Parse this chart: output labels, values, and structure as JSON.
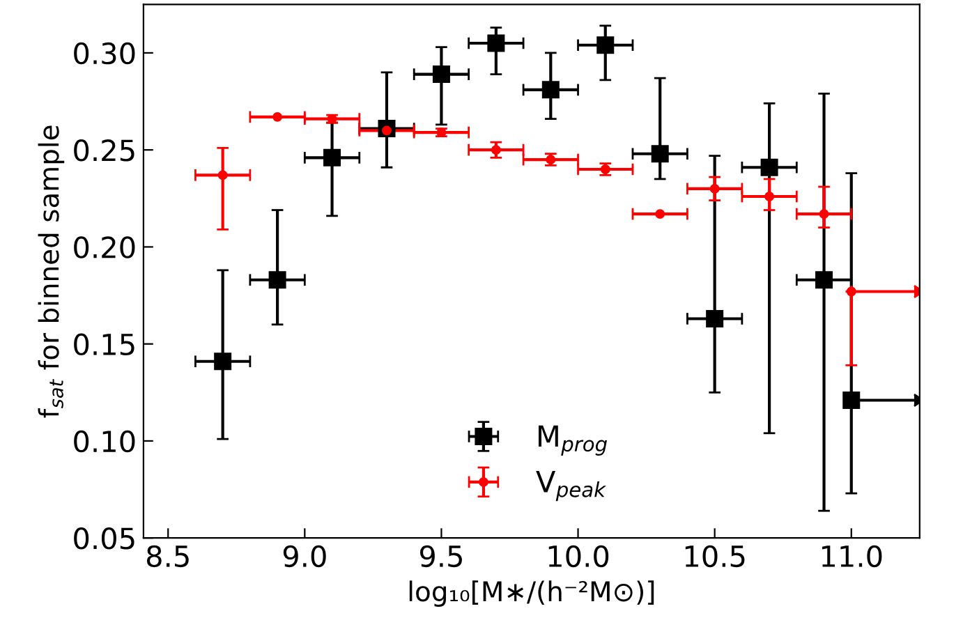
{
  "chart_data": {
    "type": "scatter",
    "xlabel": "log₁₀[M∗/(h⁻²M⊙)]",
    "ylabel": "f$_{sat}$ for binned sample",
    "xlim": [
      8.41,
      11.25
    ],
    "ylim": [
      0.05,
      0.325
    ],
    "xticks": [
      {
        "value": 8.5,
        "label": "8.5"
      },
      {
        "value": 9.0,
        "label": "9.0"
      },
      {
        "value": 9.5,
        "label": "9.5"
      },
      {
        "value": 10.0,
        "label": "10.0"
      },
      {
        "value": 10.5,
        "label": "10.5"
      },
      {
        "value": 11.0,
        "label": "11.0"
      }
    ],
    "yticks": [
      0.05,
      {
        "value": 0.1,
        "label": "0.10"
      },
      0.15,
      {
        "value": 0.2,
        "label": "0.20"
      },
      0.25,
      {
        "value": 0.3,
        "label": "0.30"
      }
    ],
    "legend": "bottom",
    "grid": false,
    "series": [
      {
        "name": "M$_{prog}$",
        "color": "#000000",
        "marker": "square",
        "x": [
          8.7,
          8.9,
          9.1,
          9.3,
          9.5,
          9.7,
          9.9,
          10.1,
          10.3,
          10.5,
          10.7,
          10.9,
          11.0
        ],
        "values": [
          0.141,
          0.183,
          0.246,
          0.261,
          0.289,
          0.305,
          0.281,
          0.304,
          0.248,
          0.163,
          0.241,
          0.183,
          0.121
        ],
        "errors": [
          [
            0.101,
            0.188
          ],
          [
            0.16,
            0.219
          ],
          [
            0.216,
            0.264
          ],
          [
            0.241,
            0.29
          ],
          [
            0.263,
            0.303
          ],
          [
            0.289,
            0.313
          ],
          [
            0.266,
            0.3
          ],
          [
            0.286,
            0.314
          ],
          [
            0.235,
            0.287
          ],
          [
            0.125,
            0.247
          ],
          [
            0.104,
            0.274
          ],
          [
            0.064,
            0.279
          ],
          [
            0.073,
            0.238
          ]
        ],
        "xerrors": [
          0.1,
          0.1,
          0.1,
          0.1,
          0.1,
          0.1,
          0.1,
          0.1,
          0.1,
          0.1,
          0.1,
          0.1,
          [
            11.0,
            11.23
          ]
        ]
      },
      {
        "name": "V$_{peak}$",
        "color": "#ff0000",
        "marker": "circle",
        "x": [
          8.7,
          8.9,
          9.1,
          9.3,
          9.5,
          9.7,
          9.9,
          10.1,
          10.3,
          10.5,
          10.7,
          10.9,
          11.0
        ],
        "values": [
          0.237,
          0.267,
          0.266,
          0.26,
          0.259,
          0.25,
          0.245,
          0.24,
          0.217,
          0.23,
          0.226,
          0.217,
          0.177
        ],
        "errors": [
          [
            0.209,
            0.251
          ],
          null,
          0.002,
          null,
          0.002,
          0.004,
          0.003,
          0.003,
          null,
          0.006,
          [
            0.219,
            0.235
          ],
          [
            0.21,
            0.231
          ],
          [
            0.139,
            0.177
          ]
        ],
        "xerrors": [
          0.1,
          0.1,
          0.1,
          0.1,
          0.1,
          0.1,
          0.1,
          0.1,
          0.1,
          0.1,
          0.1,
          0.1,
          [
            11.0,
            11.23
          ]
        ]
      }
    ]
  }
}
